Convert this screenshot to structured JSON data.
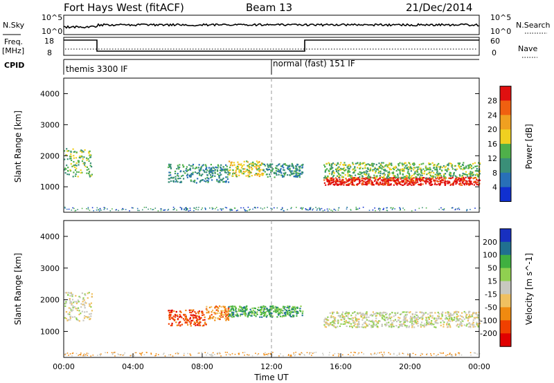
{
  "header": {
    "station": "Fort Hays West (fitACF)",
    "beam": "Beam 13",
    "date": "21/Dec/2014"
  },
  "strip_labels": {
    "nsky": "N.Sky",
    "nsearch": "N.Search",
    "freq_line1": "Freq.",
    "freq_line2": "[MHz]",
    "nave": "Nave",
    "cpid": "CPID",
    "ns_left_top": "10^5",
    "ns_left_bottom": "10^0",
    "ns_right_top": "10^5",
    "ns_right_bottom": "10^0",
    "freq_top": "18",
    "freq_bottom": "8",
    "nave_top": "60",
    "nave_bottom": "0"
  },
  "cpid_entries": [
    {
      "label": "themis 3300 IF",
      "start_hour": 0
    },
    {
      "label": "normal (fast) 151 IF",
      "start_hour": 12
    }
  ],
  "colors": {
    "power_scale": [
      "#1030d0",
      "#2870b8",
      "#3a8f78",
      "#4fb04a",
      "#f0d020",
      "#f0a020",
      "#f06010",
      "#e01010"
    ],
    "velocity_scale": [
      "#e00000",
      "#f04000",
      "#f08a10",
      "#f0c060",
      "#c8c8c0",
      "#90d050",
      "#40b040",
      "#207090",
      "#1830c0"
    ]
  },
  "chart_data": [
    {
      "type": "heatmap",
      "name": "Power",
      "xlabel": "",
      "ylabel": "Slant Range [km]",
      "xlim": [
        0,
        24
      ],
      "ylim": [
        180,
        4500
      ],
      "y_ticks": [
        "1000",
        "2000",
        "3000",
        "4000"
      ],
      "colorbar_label": "Power [dB]",
      "colorbar_ticks": [
        "4",
        "8",
        "12",
        "16",
        "20",
        "24",
        "28"
      ],
      "regions": [
        {
          "x": [
            0.0,
            1.6
          ],
          "y_center": 1800,
          "thickness": 900,
          "level": 3
        },
        {
          "x": [
            6.0,
            9.5
          ],
          "y_center": 1450,
          "thickness": 600,
          "level": 2
        },
        {
          "x": [
            9.5,
            11.5
          ],
          "y_center": 1600,
          "thickness": 500,
          "level": 4
        },
        {
          "x": [
            11.5,
            13.8
          ],
          "y_center": 1550,
          "thickness": 450,
          "level": 2
        },
        {
          "x": [
            15.0,
            24.0
          ],
          "y_center": 1200,
          "thickness": 250,
          "level": 7
        },
        {
          "x": [
            15.0,
            24.0
          ],
          "y_center": 1550,
          "thickness": 500,
          "level": 3
        }
      ]
    },
    {
      "type": "heatmap",
      "name": "Velocity",
      "xlabel": "Time UT",
      "ylabel": "Slant Range [km]",
      "xlim": [
        0,
        24
      ],
      "ylim": [
        180,
        4500
      ],
      "x_ticks": [
        "00:00",
        "04:00",
        "08:00",
        "12:00",
        "16:00",
        "20:00",
        "00:00"
      ],
      "y_ticks": [
        "1000",
        "2000",
        "3000",
        "4000"
      ],
      "colorbar_label": "Velocity [m s^-1]",
      "colorbar_ticks": [
        "200",
        "100",
        "50",
        "15",
        "-15",
        "-50",
        "-100",
        "-200"
      ],
      "regions": [
        {
          "x": [
            0.0,
            1.6
          ],
          "y_center": 1800,
          "thickness": 900,
          "level": 4
        },
        {
          "x": [
            6.0,
            8.2
          ],
          "y_center": 1450,
          "thickness": 500,
          "level": 1
        },
        {
          "x": [
            8.2,
            9.5
          ],
          "y_center": 1600,
          "thickness": 450,
          "level": 2
        },
        {
          "x": [
            9.5,
            13.8
          ],
          "y_center": 1650,
          "thickness": 350,
          "level": 6
        },
        {
          "x": [
            15.0,
            24.0
          ],
          "y_center": 1400,
          "thickness": 500,
          "level": 4
        }
      ]
    }
  ]
}
